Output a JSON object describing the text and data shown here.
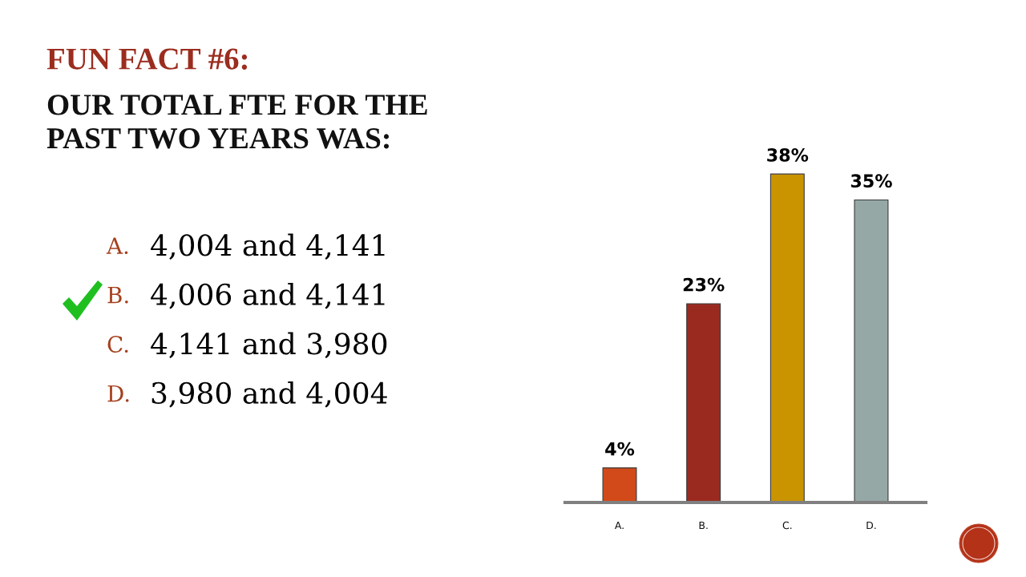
{
  "chart_data": {
    "type": "bar",
    "title": "FUN FACT #6:",
    "subtitle": "OUR TOTAL FTE FOR THE\nPAST TWO YEARS WAS:",
    "annotations": [
      "A. 4,004 and 4,141",
      "B. 4,006 and 4,141",
      "C. 4,141 and 3,980",
      "D. 3,980 and 4,004"
    ],
    "categories": [
      "A.",
      "B.",
      "C.",
      "D."
    ],
    "values": [
      4,
      23,
      38,
      35
    ],
    "colors": [
      "#d24a1a",
      "#9a2a20",
      "#c99400",
      "#95a8a6"
    ],
    "value_labels": [
      "4%",
      "23%",
      "38%",
      "35%"
    ],
    "tick_labels": "x"
  }
}
